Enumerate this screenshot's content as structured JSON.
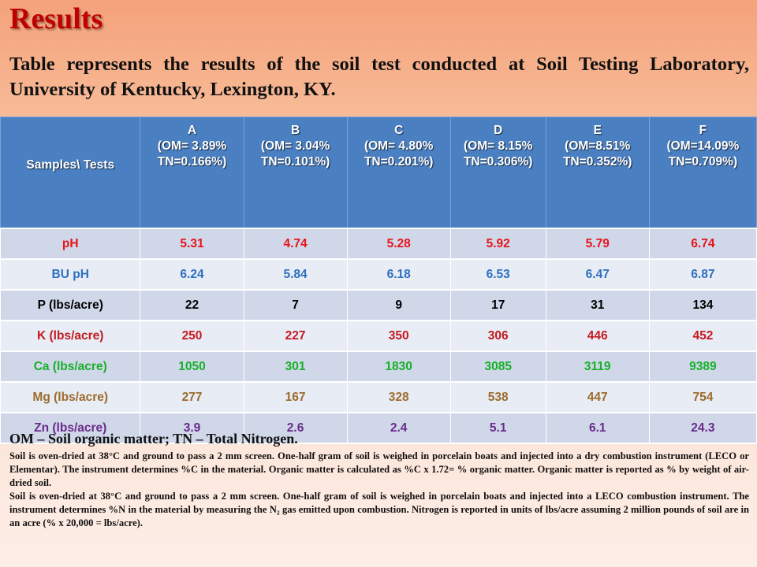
{
  "title": "Results",
  "intro": "Table represents the results of the soil test conducted at Soil Testing Laboratory, University of Kentucky, Lexington, KY.",
  "table": {
    "row_header": "Samples\\ Tests",
    "columns": [
      {
        "id": "A",
        "om": "(OM= 3.89%",
        "tn": "TN=0.166%)"
      },
      {
        "id": "B",
        "om": "(OM= 3.04%",
        "tn": "TN=0.101%)"
      },
      {
        "id": "C",
        "om": "(OM= 4.80%",
        "tn": "TN=0.201%)"
      },
      {
        "id": "D",
        "om": "(OM= 8.15%",
        "tn": "TN=0.306%)"
      },
      {
        "id": "E",
        "om": "(OM=8.51%",
        "tn": "TN=0.352%)"
      },
      {
        "id": "F",
        "om": "(OM=14.09%",
        "tn": "TN=0.709%)"
      }
    ],
    "rows": [
      {
        "label": "pH",
        "color": "#e8141b",
        "values": [
          "5.31",
          "4.74",
          "5.28",
          "5.92",
          "5.79",
          "6.74"
        ]
      },
      {
        "label": "BU pH",
        "color": "#2e6fc0",
        "values": [
          "6.24",
          "5.84",
          "6.18",
          "6.53",
          "6.47",
          "6.87"
        ]
      },
      {
        "label": "P (lbs/acre)",
        "color": "#000000",
        "values": [
          "22",
          "7",
          "9",
          "17",
          "31",
          "134"
        ]
      },
      {
        "label": "K (lbs/acre)",
        "color": "#c41a20",
        "values": [
          "250",
          "227",
          "350",
          "306",
          "446",
          "452"
        ]
      },
      {
        "label": "Ca (lbs/acre)",
        "color": "#17b02a",
        "values": [
          "1050",
          "301",
          "1830",
          "3085",
          "3119",
          "9389"
        ]
      },
      {
        "label": "Mg (lbs/acre)",
        "color": "#9c6b2d",
        "values": [
          "277",
          "167",
          "328",
          "538",
          "447",
          "754"
        ]
      },
      {
        "label": "Zn (lbs/acre)",
        "color": "#6a2a8c",
        "values": [
          "3.9",
          "2.6",
          "2.4",
          "5.1",
          "6.1",
          "24.3"
        ]
      }
    ]
  },
  "notes": {
    "lead": "OM – Soil organic matter; TN – Total Nitrogen.",
    "om_method": "Soil is oven-dried at 38°C and ground to pass a 2 mm screen. One-half gram of soil is weighed in porcelain boats and injected into a dry combustion instrument (LECO or Elementar). The instrument determines %C in the material. Organic matter is calculated as %C x 1.72= % organic matter. Organic matter is reported as % by weight of air-dried soil.",
    "tn_method": "Soil is oven-dried at 38°C and ground to pass a 2 mm screen. One-half gram of soil is weighed in porcelain boats and injected into a LECO combustion instrument. The instrument determines %N in the material by measuring the N₂ gas emitted upon combustion. Nitrogen is reported in units of lbs/acre assuming 2 million pounds of soil are in an acre (% x 20,000 = lbs/acre)."
  }
}
